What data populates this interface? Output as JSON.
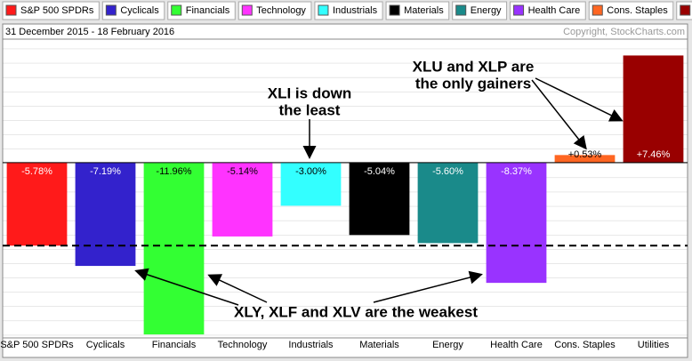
{
  "chart_data": {
    "type": "bar",
    "subtitle": "31 December 2015 - 18 February 2016",
    "credit": "Copyright, StockCharts.com",
    "categories": [
      "S&P 500 SPDRs",
      "Cyclicals",
      "Financials",
      "Technology",
      "Industrials",
      "Materials",
      "Energy",
      "Health Care",
      "Cons. Staples",
      "Utilities"
    ],
    "values": [
      -5.78,
      -7.19,
      -11.96,
      -5.14,
      -3.0,
      -5.04,
      -5.6,
      -8.37,
      0.53,
      7.46
    ],
    "value_labels": [
      "-5.78%",
      "-7.19%",
      "-11.96%",
      "-5.14%",
      "-3.00%",
      "-5.04%",
      "-5.60%",
      "-8.37%",
      "+0.53%",
      "+7.46%"
    ],
    "colors": [
      "#ff1a1a",
      "#3322cc",
      "#33ff33",
      "#ff33ff",
      "#33ffff",
      "#000000",
      "#1a8a8a",
      "#9933ff",
      "#ff6622",
      "#990000"
    ],
    "ylim": [
      -12.2,
      8.6
    ],
    "annotations": [
      "XLI is down",
      "the least",
      "XLU and XLP are",
      "the only gainers",
      "XLY, XLF and XLV are the weakest"
    ]
  }
}
